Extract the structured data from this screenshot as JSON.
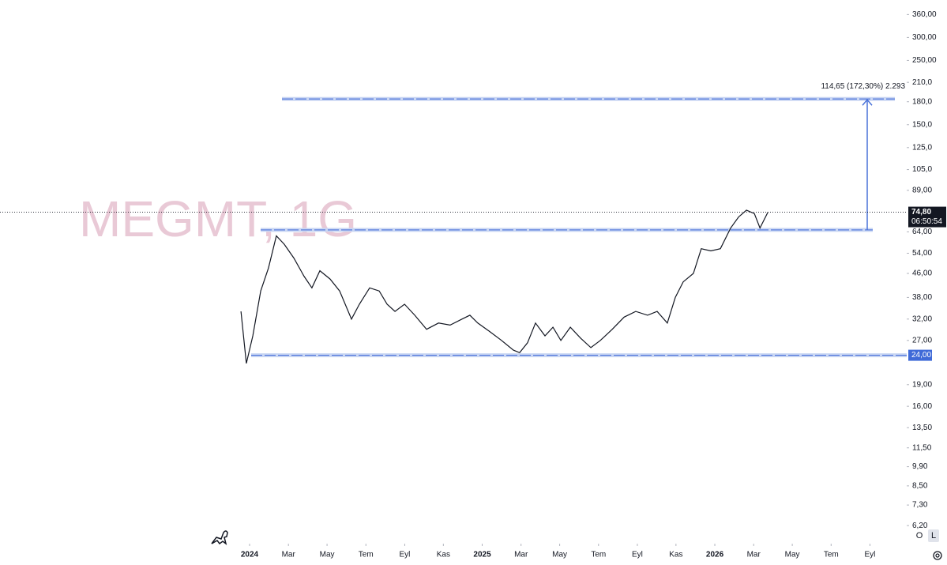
{
  "chart_data": {
    "type": "line",
    "log_scale": true,
    "watermark": "MEGMT, 1G",
    "color": "#131722",
    "x": [
      2023.963,
      2023.986,
      2024.014,
      2024.048,
      2024.081,
      2024.115,
      2024.149,
      2024.19,
      2024.234,
      2024.268,
      2024.302,
      2024.346,
      2024.387,
      2024.438,
      2024.472,
      2024.516,
      2024.557,
      2024.591,
      2024.625,
      2024.666,
      2024.71,
      2024.761,
      2024.812,
      2024.862,
      2024.913,
      2024.947,
      2024.981,
      2025.032,
      2025.083,
      2025.134,
      2025.161,
      2025.195,
      2025.229,
      2025.27,
      2025.304,
      2025.338,
      2025.379,
      2025.423,
      2025.467,
      2025.508,
      2025.559,
      2025.61,
      2025.66,
      2025.711,
      2025.752,
      2025.796,
      2025.83,
      2025.864,
      2025.908,
      2025.942,
      2025.983,
      2026.024,
      2026.068,
      2026.102,
      2026.136,
      2026.17,
      2026.194,
      2026.228
    ],
    "values": [
      34,
      22.5,
      28,
      40,
      48,
      62,
      58,
      52,
      45,
      41,
      47,
      44,
      40,
      32,
      36,
      41,
      40,
      36,
      34,
      36,
      33,
      29.5,
      31,
      30.5,
      32,
      33,
      31,
      29,
      27,
      25,
      24.5,
      26.5,
      31,
      28,
      30,
      27,
      30,
      27.5,
      25.5,
      27,
      29.5,
      32.5,
      34,
      33,
      34,
      31,
      38,
      43,
      46,
      56,
      55,
      56,
      66,
      72,
      76,
      74,
      66,
      74.8
    ],
    "xlim": [
      2022.927,
      2026.825
    ],
    "xticks": [
      {
        "value": 2024,
        "label": "2024"
      },
      {
        "value": 2024.167,
        "label": "Mar"
      },
      {
        "value": 2024.333,
        "label": "May"
      },
      {
        "value": 2024.5,
        "label": "Tem"
      },
      {
        "value": 2024.667,
        "label": "Eyl"
      },
      {
        "value": 2024.833,
        "label": "Kas"
      },
      {
        "value": 2025,
        "label": "2025"
      },
      {
        "value": 2025.167,
        "label": "Mar"
      },
      {
        "value": 2025.333,
        "label": "May"
      },
      {
        "value": 2025.5,
        "label": "Tem"
      },
      {
        "value": 2025.667,
        "label": "Eyl"
      },
      {
        "value": 2025.833,
        "label": "Kas"
      },
      {
        "value": 2026,
        "label": "2026"
      },
      {
        "value": 2026.167,
        "label": "Mar"
      },
      {
        "value": 2026.333,
        "label": "May"
      },
      {
        "value": 2026.5,
        "label": "Tem"
      },
      {
        "value": 2026.667,
        "label": "Eyl"
      }
    ],
    "ylim": [
      5.37,
      404
    ],
    "yticks": [
      {
        "value": 360,
        "label": "360,00"
      },
      {
        "value": 300,
        "label": "300,00"
      },
      {
        "value": 250,
        "label": "250,00"
      },
      {
        "value": 210,
        "label": "210,0"
      },
      {
        "value": 180,
        "label": "180,0"
      },
      {
        "value": 150,
        "label": "150,0"
      },
      {
        "value": 125,
        "label": "125,0"
      },
      {
        "value": 105,
        "label": "105,0"
      },
      {
        "value": 89,
        "label": "89,00"
      },
      {
        "value": 64,
        "label": "64,00"
      },
      {
        "value": 54,
        "label": "54,00"
      },
      {
        "value": 46,
        "label": "46,00"
      },
      {
        "value": 38,
        "label": "38,00"
      },
      {
        "value": 32,
        "label": "32,00"
      },
      {
        "value": 27,
        "label": "27,00"
      },
      {
        "value": 19,
        "label": "19,00"
      },
      {
        "value": 16,
        "label": "16,00"
      },
      {
        "value": 13.5,
        "label": "13,50"
      },
      {
        "value": 11.5,
        "label": "11,50"
      },
      {
        "value": 9.9,
        "label": "9,90"
      },
      {
        "value": 8.5,
        "label": "8,50"
      },
      {
        "value": 7.3,
        "label": "7,30"
      },
      {
        "value": 6.2,
        "label": "6,20"
      }
    ],
    "levels": [
      184,
      65,
      24
    ],
    "level_color": "#4a72d9",
    "measure_label": "114,65 (172,30%) 2.293",
    "price_labels": [
      {
        "value": 74.8,
        "label": "74,80"
      },
      {
        "value": 24,
        "label": "24,00"
      }
    ],
    "countdown": "06:50:54",
    "scale_buttons": [
      "O",
      "L"
    ]
  }
}
